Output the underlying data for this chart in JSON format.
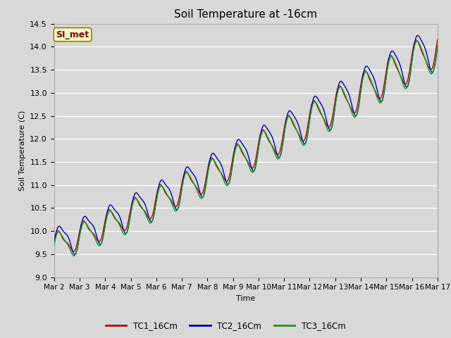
{
  "title": "Soil Temperature at -16cm",
  "xlabel": "Time",
  "ylabel": "Soil Temperature (C)",
  "ylim": [
    9.0,
    14.5
  ],
  "xlim": [
    0,
    15
  ],
  "background_color": "#d8d8d8",
  "plot_bg_color": "#d8d8d8",
  "grid_color": "#ffffff",
  "annotation_text": "SI_met",
  "annotation_color": "#8b0000",
  "annotation_bg": "#ffffcc",
  "series": {
    "TC1_16Cm": {
      "color": "#cc0000",
      "label": "TC1_16Cm"
    },
    "TC2_16Cm": {
      "color": "#0000cc",
      "label": "TC2_16Cm"
    },
    "TC3_16Cm": {
      "color": "#00aa00",
      "label": "TC3_16Cm"
    }
  },
  "xtick_labels": [
    "Mar 2",
    "Mar 3",
    "Mar 4",
    "Mar 5",
    "Mar 6",
    "Mar 7",
    "Mar 8",
    "Mar 9",
    "Mar 10",
    "Mar 11",
    "Mar 12",
    "Mar 13",
    "Mar 14",
    "Mar 15",
    "Mar 16",
    "Mar 17"
  ],
  "xtick_positions": [
    0,
    1,
    2,
    3,
    4,
    5,
    6,
    7,
    8,
    9,
    10,
    11,
    12,
    13,
    14,
    15
  ],
  "ytick_positions": [
    9.0,
    9.5,
    10.0,
    10.5,
    11.0,
    11.5,
    12.0,
    12.5,
    13.0,
    13.5,
    14.0,
    14.5
  ]
}
